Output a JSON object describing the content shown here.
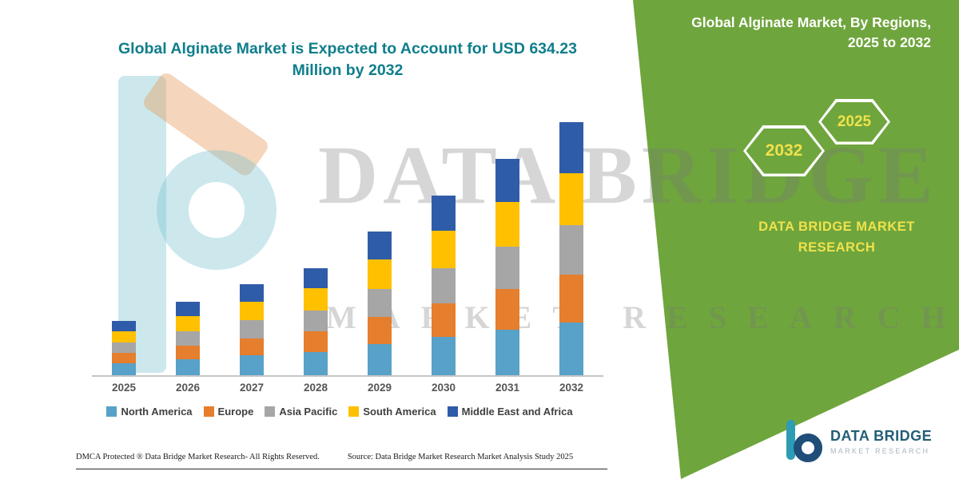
{
  "title": {
    "line1": "Global Alginate Market is Expected to Account for USD 634.23",
    "line2": "Million by 2032"
  },
  "side_panel": {
    "heading_line1": "Global Alginate Market, By Regions,",
    "heading_line2": "2025 to 2032",
    "hexagon_years": [
      "2032",
      "2025"
    ],
    "brand_line1": "DATA BRIDGE MARKET",
    "brand_line2": "RESEARCH",
    "bg_color": "#6FA53D",
    "accent_text_color": "#F0E24B"
  },
  "watermark": {
    "line1": "DATA BRIDGE",
    "line2": "MARKET RESEARCH"
  },
  "chart_data": {
    "type": "bar",
    "stacked": true,
    "title": "Global Alginate Market is Expected to Account for USD 634.23 Million by 2032",
    "unit": "USD Million",
    "categories": [
      "2025",
      "2026",
      "2027",
      "2028",
      "2029",
      "2030",
      "2031",
      "2032"
    ],
    "series": [
      {
        "name": "North America",
        "color": "#58A1C8",
        "values": [
          30,
          40,
          50,
          59,
          78,
          96,
          115,
          133
        ]
      },
      {
        "name": "Europe",
        "color": "#E57E2D",
        "values": [
          26,
          35,
          43,
          51,
          68,
          85,
          102,
          119
        ]
      },
      {
        "name": "Asia Pacific",
        "color": "#A6A6A6",
        "values": [
          27,
          36,
          45,
          53,
          71,
          88,
          106,
          124
        ]
      },
      {
        "name": "South America",
        "color": "#FFC000",
        "values": [
          28,
          38,
          47,
          56,
          74,
          93,
          112,
          130
        ]
      },
      {
        "name": "Middle East and Africa",
        "color": "#2F5CA8",
        "values": [
          26,
          36,
          44,
          50,
          70,
          88,
          107,
          128.23
        ]
      }
    ],
    "totals": [
      137,
      185,
      229,
      269,
      361,
      450,
      542,
      634.23
    ],
    "ylim": [
      0,
      660
    ],
    "grid": false,
    "legend_position": "bottom"
  },
  "footer": {
    "left": "DMCA Protected ® Data Bridge Market Research-  All Rights Reserved.",
    "source": "Source: Data Bridge Market Research  Market Analysis Study 2025"
  },
  "logo": {
    "name": "DATA BRIDGE",
    "subtitle": "MARKET RESEARCH"
  }
}
